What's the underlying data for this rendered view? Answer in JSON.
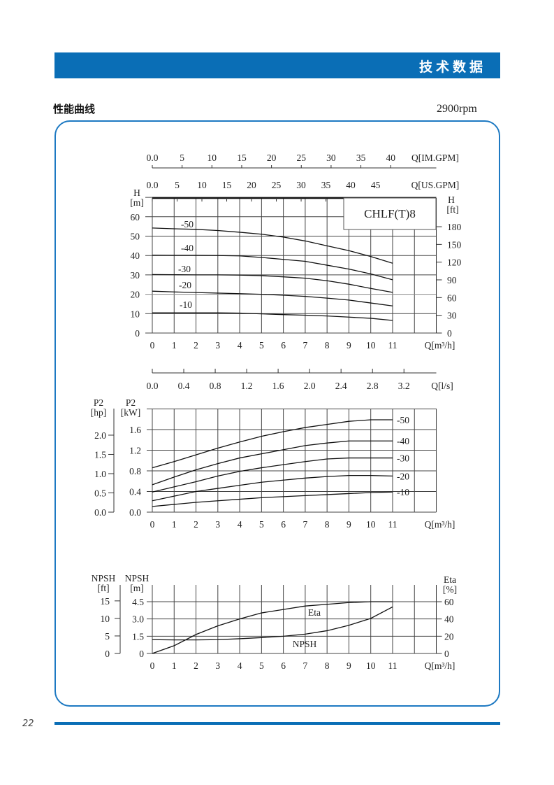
{
  "header": {
    "title": "技术数据"
  },
  "section": {
    "title": "性能曲线",
    "speed": "2900rpm"
  },
  "page_number": "22",
  "colors": {
    "brand": "#0a6eb6"
  },
  "chart_data": [
    {
      "type": "line",
      "title": "CHLF(T)8",
      "x": [
        0,
        1,
        2,
        3,
        4,
        5,
        6,
        7,
        8,
        9,
        10,
        11
      ],
      "xlabel": "Q[m³/h]",
      "xticks": [
        0,
        1,
        2,
        3,
        4,
        5,
        6,
        7,
        8,
        9,
        10,
        11
      ],
      "ylabel_left": [
        "H",
        "[m]"
      ],
      "yticks": [
        0,
        10,
        20,
        30,
        40,
        50,
        60
      ],
      "ylim": [
        0,
        70
      ],
      "ylabel_right": [
        "H",
        "[ft]"
      ],
      "yticks_right": [
        0,
        30,
        60,
        90,
        120,
        150,
        180
      ],
      "top_axis_im": {
        "label": "Q[IM.GPM]",
        "ticks": [
          "0.0",
          "5",
          "10",
          "15",
          "20",
          "25",
          "30",
          "35",
          "40"
        ]
      },
      "top_axis_us": {
        "label": "Q[US.GPM]",
        "ticks": [
          "0.0",
          "5",
          "10",
          "15",
          "20",
          "25",
          "30",
          "35",
          "40",
          "45"
        ]
      },
      "series": [
        {
          "name": "-50",
          "values": [
            54.2,
            53.8,
            53.5,
            52.9,
            52.0,
            51.0,
            49.5,
            47.5,
            45.0,
            42.5,
            39.5,
            36.0
          ]
        },
        {
          "name": "-40",
          "values": [
            40.2,
            40.1,
            40.1,
            40.0,
            39.8,
            39.0,
            38.0,
            37.0,
            35.0,
            33.0,
            30.5,
            27.5
          ]
        },
        {
          "name": "-30",
          "values": [
            30.2,
            30.1,
            30.0,
            30.0,
            29.9,
            29.6,
            29.0,
            28.3,
            27.0,
            25.2,
            23.0,
            21.0
          ]
        },
        {
          "name": "-20",
          "values": [
            21.6,
            21.2,
            20.9,
            20.6,
            20.3,
            20.0,
            19.5,
            18.9,
            18.0,
            17.0,
            15.5,
            14.0
          ]
        },
        {
          "name": "-10",
          "values": [
            10.4,
            10.4,
            10.4,
            10.4,
            10.3,
            9.9,
            9.5,
            9.2,
            8.8,
            8.2,
            7.6,
            6.5
          ]
        }
      ]
    },
    {
      "type": "line",
      "x": [
        0,
        1,
        2,
        3,
        4,
        5,
        6,
        7,
        8,
        9,
        10,
        11
      ],
      "xlabel": "Q[m³/h]",
      "xticks": [
        0,
        1,
        2,
        3,
        4,
        5,
        6,
        7,
        8,
        9,
        10,
        11
      ],
      "top_axis_ls": {
        "label": "Q[l/s]",
        "ticks": [
          "0.0",
          "0.4",
          "0.8",
          "1.2",
          "1.6",
          "2.0",
          "2.4",
          "2.8",
          "3.2"
        ]
      },
      "ylabel_kw": [
        "P2",
        "[kW]"
      ],
      "yticks_kw": [
        "0.0",
        "0.4",
        "0.8",
        "1.2",
        "1.6"
      ],
      "ylim": [
        0,
        2.0
      ],
      "ylabel_hp": [
        "P2",
        "[hp]"
      ],
      "yticks_hp": [
        "0.0",
        "0.5",
        "1.0",
        "1.5",
        "2.0"
      ],
      "series": [
        {
          "name": "-50",
          "values": [
            0.86,
            0.98,
            1.11,
            1.24,
            1.36,
            1.47,
            1.56,
            1.64,
            1.7,
            1.76,
            1.79,
            1.79
          ]
        },
        {
          "name": "-40",
          "values": [
            0.53,
            0.68,
            0.82,
            0.94,
            1.05,
            1.13,
            1.21,
            1.29,
            1.34,
            1.38,
            1.38,
            1.38
          ]
        },
        {
          "name": "-30",
          "values": [
            0.39,
            0.49,
            0.59,
            0.7,
            0.79,
            0.86,
            0.92,
            0.98,
            1.03,
            1.05,
            1.05,
            1.05
          ]
        },
        {
          "name": "-20",
          "values": [
            0.22,
            0.31,
            0.4,
            0.46,
            0.52,
            0.58,
            0.62,
            0.66,
            0.69,
            0.71,
            0.71,
            0.7
          ]
        },
        {
          "name": "-10",
          "values": [
            0.11,
            0.15,
            0.19,
            0.22,
            0.25,
            0.28,
            0.3,
            0.32,
            0.34,
            0.36,
            0.38,
            0.39
          ]
        }
      ]
    },
    {
      "type": "line",
      "x": [
        0,
        1,
        2,
        3,
        4,
        5,
        6,
        7,
        8,
        9,
        10,
        11
      ],
      "xlabel": "Q[m³/h]",
      "xticks": [
        0,
        1,
        2,
        3,
        4,
        5,
        6,
        7,
        8,
        9,
        10,
        11
      ],
      "ylabel_m": [
        "NPSH",
        "[m]"
      ],
      "yticks_m": [
        "0",
        "1.5",
        "3.0",
        "4.5"
      ],
      "ylabel_ft": [
        "NPSH",
        "[ft]"
      ],
      "yticks_ft": [
        "0",
        "5",
        "10",
        "15"
      ],
      "ylabel_eta": [
        "Eta",
        "[%]"
      ],
      "yticks_eta": [
        "0",
        "20",
        "40",
        "60"
      ],
      "series": [
        {
          "name": "Eta",
          "unit": "%",
          "values": [
            0,
            9,
            22,
            32,
            40,
            47,
            51,
            55,
            57,
            59,
            60,
            60
          ]
        },
        {
          "name": "NPSH",
          "unit": "m",
          "values": [
            1.2,
            1.18,
            1.18,
            1.2,
            1.28,
            1.38,
            1.5,
            1.68,
            1.98,
            2.45,
            3.05,
            4.05
          ]
        }
      ]
    }
  ]
}
